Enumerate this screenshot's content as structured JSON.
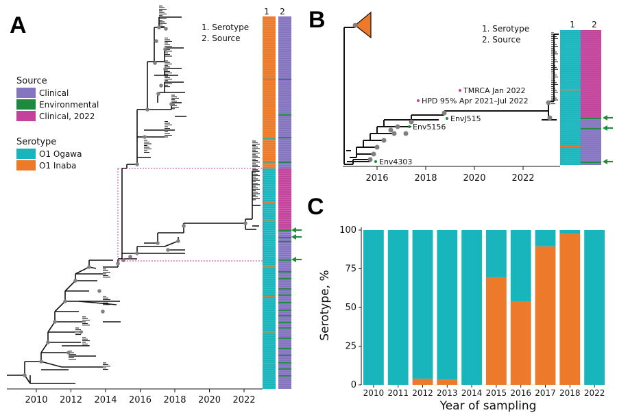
{
  "panels": {
    "a": "A",
    "b": "B",
    "c": "C"
  },
  "colors": {
    "clinical": "#8574c0",
    "environmental": "#1d8a3e",
    "clinical2022": "#c3429b",
    "ogawa": "#19b5bd",
    "inaba": "#ec7a2a",
    "tree": "#111111",
    "node": "#808080",
    "arrow": "#1d8a3e",
    "box": "#c3429b"
  },
  "legend": {
    "source_title": "Source",
    "source_items": [
      "Clinical",
      "Environmental",
      "Clinical, 2022"
    ],
    "serotype_title": "Serotype",
    "serotype_items": [
      "O1 Ogawa",
      "O1 Inaba"
    ]
  },
  "strip_legend_a": {
    "line1": "1. Serotype",
    "line2": "2. Source",
    "col1": "1",
    "col2": "2"
  },
  "strip_legend_b": {
    "line1": "1. Serotype",
    "line2": "2. Source",
    "col1": "1",
    "col2": "2"
  },
  "panel_a": {
    "x_ticks": [
      "2010",
      "2012",
      "2014",
      "2016",
      "2018",
      "2020",
      "2022"
    ]
  },
  "panel_b": {
    "x_ticks": [
      "2016",
      "2018",
      "2020",
      "2022"
    ],
    "annotations": {
      "tmrca": "TMRCA Jan 2022",
      "hpd": "HPD 95% Apr 2021–Jul 2022",
      "envj515": "EnvJ515",
      "env5156": "Env5156",
      "env4303": "Env4303"
    }
  },
  "chart_data": {
    "type": "bar",
    "stacked": true,
    "categories": [
      "2010",
      "2011",
      "2012",
      "2013",
      "2014",
      "2015",
      "2016",
      "2017",
      "2018",
      "2022"
    ],
    "series": [
      {
        "name": "O1 Inaba",
        "values": [
          0,
          0,
          4,
          3.5,
          0,
          69.5,
          54,
          89.5,
          97.5,
          0
        ]
      },
      {
        "name": "O1 Ogawa",
        "values": [
          100,
          100,
          96,
          96.5,
          100,
          30.5,
          46,
          10.5,
          2.5,
          100
        ]
      }
    ],
    "xlabel": "Year of sampling",
    "ylabel": "Serotype, %",
    "ylim": [
      0,
      100
    ],
    "y_ticks": [
      "0",
      "25",
      "50",
      "75",
      "100"
    ]
  }
}
